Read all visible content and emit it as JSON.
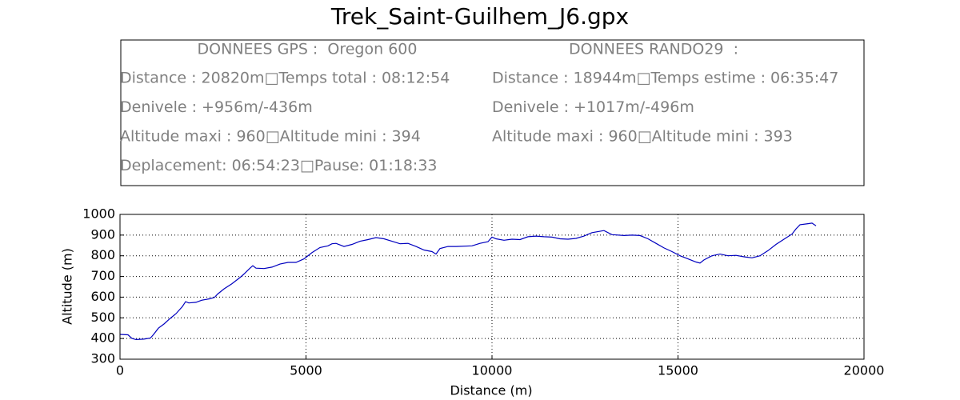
{
  "chart_data": {
    "type": "line",
    "title": "Trek_Saint-Guilhem_J6.gpx",
    "info_panels": [
      {
        "heading": "DONNEES GPS :  Oregon 600",
        "lines": [
          "Distance : 20820m□Temps total : 08:12:54",
          "Denivele : +956m/-436m",
          "Altitude maxi : 960□Altitude mini : 394",
          "Deplacement: 06:54:23□Pause: 01:18:33"
        ]
      },
      {
        "heading": "DONNEES RANDO29  :",
        "lines": [
          "Distance : 18944m□Temps estime : 06:35:47",
          "Denivele : +1017m/-496m",
          "Altitude maxi : 960□Altitude mini : 393"
        ]
      }
    ],
    "xlabel": "Distance (m)",
    "ylabel": "Altitude (m)",
    "x": [
      0,
      215,
      323,
      430,
      645,
      817,
      903,
      1032,
      1183,
      1333,
      1505,
      1677,
      1763,
      1849,
      2043,
      2194,
      2409,
      2538,
      2624,
      2796,
      3011,
      3226,
      3333,
      3484,
      3570,
      3656,
      3871,
      4086,
      4301,
      4516,
      4731,
      4946,
      5161,
      5376,
      5591,
      5699,
      5806,
      6022,
      6237,
      6452,
      6667,
      6882,
      7097,
      7312,
      7527,
      7742,
      7957,
      8172,
      8387,
      8495,
      8602,
      8817,
      9032,
      9462,
      9677,
      9892,
      10000,
      10108,
      10323,
      10538,
      10753,
      10968,
      11183,
      11398,
      11613,
      11828,
      12043,
      12258,
      12473,
      12688,
      13011,
      13226,
      13548,
      13763,
      13978,
      14194,
      14409,
      14624,
      14839,
      15054,
      15269,
      15484,
      15591,
      15699,
      15914,
      16129,
      16344,
      16559,
      16774,
      16989,
      17204,
      17419,
      17634,
      17849,
      18065,
      18172,
      18280,
      18495,
      18602,
      18710
    ],
    "series": [
      {
        "color": "#0000bf",
        "values": [
          420,
          418,
          400,
          395,
          397,
          402,
          420,
          450,
          470,
          495,
          520,
          555,
          578,
          572,
          575,
          585,
          592,
          598,
          615,
          640,
          665,
          695,
          712,
          738,
          752,
          740,
          738,
          745,
          760,
          768,
          768,
          785,
          815,
          840,
          848,
          858,
          860,
          845,
          855,
          870,
          878,
          888,
          882,
          870,
          858,
          860,
          845,
          828,
          820,
          808,
          835,
          845,
          845,
          848,
          860,
          868,
          890,
          882,
          875,
          880,
          878,
          892,
          895,
          892,
          890,
          882,
          880,
          884,
          895,
          912,
          922,
          902,
          898,
          900,
          898,
          882,
          860,
          838,
          820,
          800,
          785,
          770,
          765,
          780,
          800,
          808,
          800,
          802,
          795,
          790,
          800,
          825,
          855,
          880,
          905,
          930,
          950,
          955,
          958,
          945
        ]
      }
    ],
    "xlim": [
      0,
      20000
    ],
    "ylim": [
      300,
      1000
    ],
    "xticks": [
      0,
      5000,
      10000,
      15000,
      20000
    ],
    "yticks": [
      300,
      400,
      500,
      600,
      700,
      800,
      900,
      1000
    ],
    "grid": true
  }
}
